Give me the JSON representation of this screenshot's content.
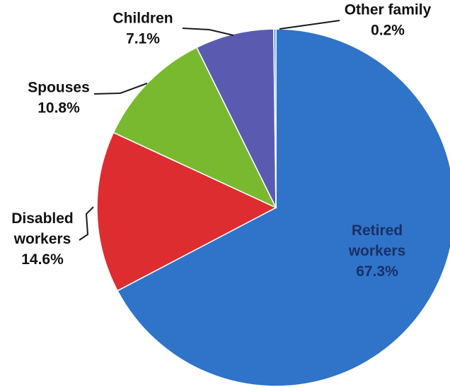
{
  "chart_data": {
    "type": "pie",
    "title": "",
    "slices": [
      {
        "label": [
          "Retired",
          "workers"
        ],
        "name": "Retired workers",
        "value": 67.3,
        "display": "67.3%",
        "color": "#2f74c8"
      },
      {
        "label": [
          "Disabled",
          "workers"
        ],
        "name": "Disabled workers",
        "value": 14.6,
        "display": "14.6%",
        "color": "#dd2d30"
      },
      {
        "label": [
          "Spouses"
        ],
        "name": "Spouses",
        "value": 10.8,
        "display": "10.8%",
        "color": "#79b930"
      },
      {
        "label": [
          "Children"
        ],
        "name": "Children",
        "value": 7.1,
        "display": "7.1%",
        "color": "#5a5bb0"
      },
      {
        "label": [
          "Other family"
        ],
        "name": "Other family",
        "value": 0.2,
        "display": "0.2%",
        "color": "#4a90d8"
      }
    ]
  }
}
